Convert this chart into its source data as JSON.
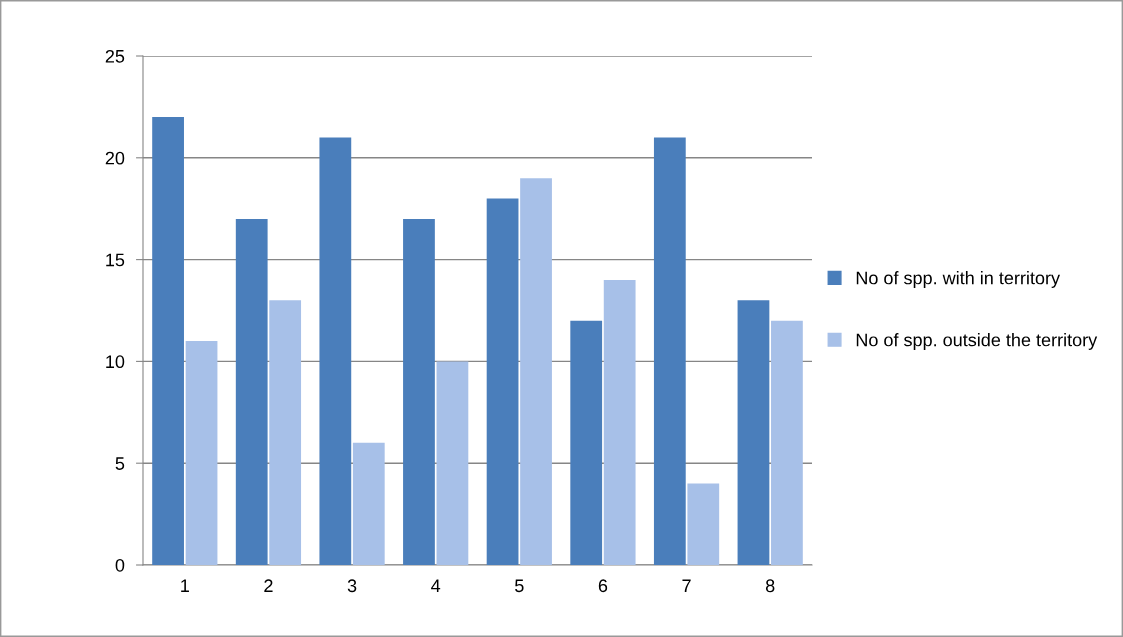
{
  "chart_data": {
    "type": "bar",
    "categories": [
      "1",
      "2",
      "3",
      "4",
      "5",
      "6",
      "7",
      "8"
    ],
    "series": [
      {
        "name": "No of spp. with in territory",
        "color": "#4a7ebb",
        "values": [
          22,
          17,
          21,
          17,
          18,
          12,
          21,
          13
        ]
      },
      {
        "name": "No of spp. outside the territory",
        "color": "#a7c0e8",
        "values": [
          11,
          13,
          6,
          10,
          19,
          14,
          4,
          12
        ]
      }
    ],
    "ylim": [
      0,
      25
    ],
    "yticks": [
      0,
      5,
      10,
      15,
      20,
      25
    ],
    "grid": "y",
    "legend": "right"
  }
}
